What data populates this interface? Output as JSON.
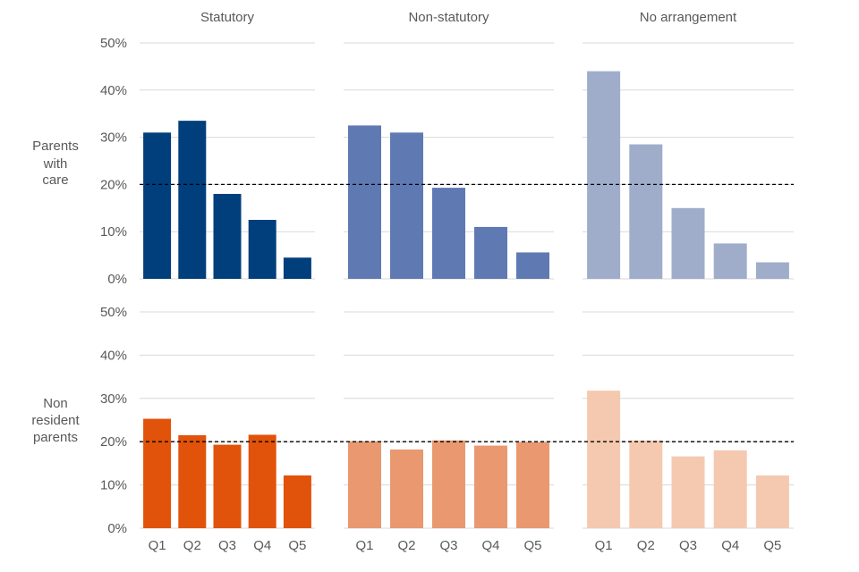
{
  "chart_data": {
    "type": "bar",
    "columns": [
      "Statutory",
      "Non-statutory",
      "No arrangement"
    ],
    "rows": [
      {
        "label": [
          "Parents",
          "with",
          "care"
        ]
      },
      {
        "label": [
          "Non",
          "resident",
          "parents"
        ]
      }
    ],
    "categories": [
      "Q1",
      "Q2",
      "Q3",
      "Q4",
      "Q5"
    ],
    "y_ticks": [
      "0%",
      "10%",
      "20%",
      "30%",
      "40%",
      "50%"
    ],
    "ylim": [
      0,
      50
    ],
    "reference_line": 20,
    "panels": [
      {
        "row": 0,
        "col": 0,
        "color": "#003f7c",
        "values": [
          31,
          33.5,
          18,
          12.5,
          4.5
        ]
      },
      {
        "row": 0,
        "col": 1,
        "color": "#5f79b3",
        "values": [
          32.5,
          31,
          19.3,
          11,
          5.6
        ]
      },
      {
        "row": 0,
        "col": 2,
        "color": "#9fadcb",
        "values": [
          44,
          28.5,
          15,
          7.5,
          3.5
        ]
      },
      {
        "row": 1,
        "col": 0,
        "color": "#e1520a",
        "values": [
          25.3,
          21.5,
          19.3,
          21.6,
          12.2
        ]
      },
      {
        "row": 1,
        "col": 1,
        "color": "#ea9870",
        "values": [
          20.1,
          18.2,
          20.3,
          19.1,
          19.9
        ]
      },
      {
        "row": 1,
        "col": 2,
        "color": "#f5c9b0",
        "values": [
          31.8,
          20.3,
          16.6,
          18,
          12.2
        ]
      }
    ],
    "grid": true,
    "legend": "none"
  }
}
